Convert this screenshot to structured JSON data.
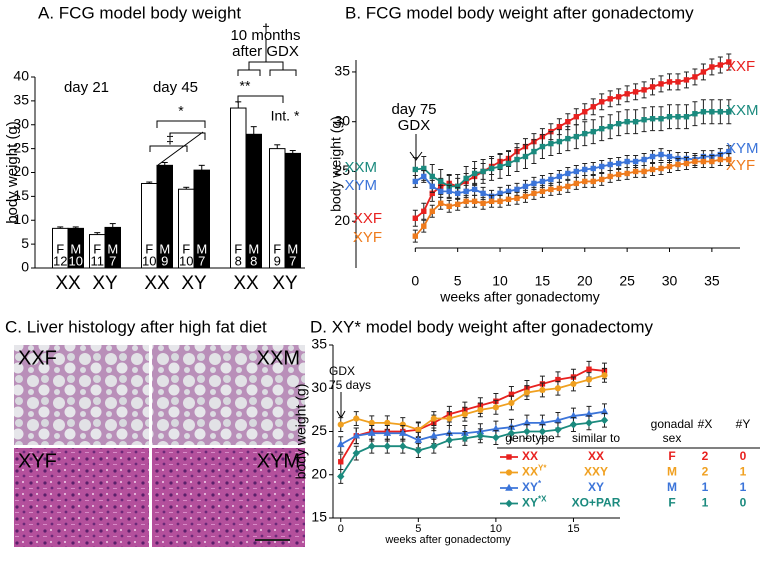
{
  "chart_data": [
    {
      "type": "bar",
      "title": "A. FCG model body weight",
      "y_label": "body weight (g)",
      "groups": [
        [
          "day 21"
        ],
        [
          "day 45"
        ],
        [
          "10 months",
          "after GDX"
        ]
      ],
      "categories": [
        "XX",
        "XY",
        "XX",
        "XY",
        "XX",
        "XY"
      ],
      "series": [
        {
          "name": "F",
          "color": "#ffffff",
          "values": [
            8.3,
            7.0,
            17.7,
            16.5,
            33.5,
            25.0
          ],
          "errors": [
            0.3,
            0.4,
            0.3,
            0.4,
            1.3,
            0.8
          ],
          "n": [
            12,
            11,
            10,
            10,
            8,
            9
          ]
        },
        {
          "name": "M",
          "color": "#000000",
          "values": [
            8.3,
            8.5,
            21.5,
            20.5,
            28.0,
            24.0
          ],
          "errors": [
            0.3,
            0.8,
            0.6,
            1.0,
            1.6,
            0.6
          ],
          "n": [
            10,
            7,
            9,
            7,
            8,
            7
          ]
        }
      ],
      "annotations": [
        "*",
        "‡",
        "**",
        "†",
        "Int. *"
      ],
      "ylim": [
        0,
        40
      ],
      "yticks": [
        0,
        5,
        10,
        15,
        20,
        25,
        30,
        35,
        40
      ]
    },
    {
      "type": "line",
      "title": "B. FCG model body weight after gonadectomy",
      "x_label": "weeks after gonadectomy",
      "y_label": "body weight (g)",
      "annotations": [
        "day 75",
        "GDX"
      ],
      "x": [
        0,
        1,
        2,
        3,
        4,
        5,
        6,
        7,
        8,
        9,
        10,
        11,
        12,
        13,
        14,
        15,
        16,
        17,
        18,
        19,
        20,
        21,
        22,
        23,
        24,
        25,
        26,
        27,
        28,
        29,
        30,
        31,
        32,
        33,
        34,
        35,
        36,
        37
      ],
      "series": [
        {
          "name": "XXF",
          "color": "#e8211f",
          "marker": "square",
          "error": 0.8,
          "values": [
            20.3,
            21.0,
            22.8,
            23.5,
            23.8,
            23.5,
            24.0,
            24.5,
            25.0,
            25.5,
            26.0,
            26.3,
            27.0,
            27.5,
            28.0,
            28.5,
            29.0,
            29.5,
            30.0,
            30.5,
            31.0,
            31.5,
            32.0,
            32.3,
            32.5,
            32.8,
            33.0,
            33.2,
            33.5,
            33.8,
            34.0,
            34.0,
            34.2,
            34.5,
            35.0,
            35.5,
            35.7,
            36.0
          ]
        },
        {
          "name": "XXM",
          "color": "#1b8a7e",
          "marker": "square",
          "error": 1.2,
          "values": [
            25.2,
            25.3,
            24.5,
            24.0,
            23.5,
            23.5,
            24.3,
            24.8,
            25.0,
            25.3,
            25.5,
            25.8,
            26.2,
            26.5,
            27.0,
            27.5,
            27.8,
            28.0,
            28.3,
            28.5,
            28.8,
            29.0,
            29.3,
            29.5,
            29.8,
            30.0,
            30.0,
            30.2,
            30.3,
            30.3,
            30.5,
            30.5,
            30.5,
            30.8,
            31.0,
            31.0,
            31.0,
            31.0
          ]
        },
        {
          "name": "XYM",
          "color": "#3b74d9",
          "marker": "square",
          "error": 0.6,
          "values": [
            24.0,
            24.5,
            23.5,
            23.0,
            23.0,
            22.8,
            23.0,
            23.2,
            22.8,
            22.5,
            22.8,
            23.0,
            23.2,
            23.5,
            23.8,
            24.0,
            24.2,
            24.5,
            24.8,
            25.0,
            25.2,
            25.3,
            25.5,
            25.7,
            25.8,
            26.0,
            26.0,
            26.2,
            26.5,
            26.7,
            26.5,
            26.3,
            26.3,
            26.2,
            26.5,
            26.5,
            26.7,
            27.0
          ]
        },
        {
          "name": "XYF",
          "color": "#ee7a1c",
          "marker": "square",
          "error": 0.6,
          "values": [
            18.5,
            19.5,
            21.0,
            21.8,
            21.5,
            21.7,
            22.0,
            22.0,
            21.8,
            22.0,
            22.0,
            22.2,
            22.3,
            22.5,
            22.8,
            23.0,
            23.2,
            23.3,
            23.5,
            23.8,
            24.0,
            24.0,
            24.2,
            24.5,
            24.7,
            24.8,
            25.0,
            25.0,
            25.2,
            25.3,
            25.5,
            25.7,
            25.8,
            26.0,
            26.0,
            26.0,
            26.2,
            26.2
          ]
        }
      ],
      "xlim": [
        -7,
        39.5
      ],
      "xticks": [
        0,
        5,
        10,
        15,
        20,
        25,
        30,
        35
      ],
      "ylim": [
        15.3,
        36.2
      ],
      "yticks": [
        20,
        25,
        30,
        35
      ]
    },
    {
      "type": "line",
      "title": "D. XY* model body weight after gonadectomy",
      "x_label": "weeks after gonadectomy",
      "y_label": "body weight (g)",
      "annotations": [
        "GDX",
        "75 days"
      ],
      "table_header": {
        "genotype": "genotype",
        "similar_to": "similar to",
        "gonadal_sex": [
          "gonadal",
          "sex"
        ],
        "n_x": "#X",
        "n_y": "#Y"
      },
      "x": [
        0,
        1,
        2,
        3,
        4,
        5,
        6,
        7,
        8,
        9,
        10,
        11,
        12,
        13,
        14,
        15,
        16,
        17
      ],
      "series": [
        {
          "name": "XX",
          "sup": "",
          "similar_to": "XX",
          "gonadal_sex": "F",
          "n_x": 2,
          "n_y": 0,
          "color": "#e8211f",
          "marker": "square",
          "error": 0.9,
          "values": [
            21.5,
            24.5,
            25.0,
            25.0,
            25.0,
            25.2,
            26.0,
            27.0,
            27.5,
            28.0,
            28.5,
            29.3,
            30.0,
            30.5,
            31.0,
            31.3,
            32.2,
            32.0
          ]
        },
        {
          "name": "XX",
          "sup": "Y*",
          "similar_to": "XXY",
          "gonadal_sex": "M",
          "n_x": 2,
          "n_y": 1,
          "color": "#f0a020",
          "marker": "circle",
          "error": 0.8,
          "values": [
            25.8,
            26.5,
            26.0,
            26.0,
            25.8,
            25.2,
            26.5,
            26.5,
            27.0,
            27.5,
            27.8,
            28.3,
            29.5,
            29.8,
            30.0,
            30.5,
            31.0,
            31.5
          ]
        },
        {
          "name": "XY",
          "sup": "*",
          "similar_to": "XY",
          "gonadal_sex": "M",
          "n_x": 1,
          "n_y": 1,
          "color": "#3b74d9",
          "marker": "triangle",
          "error": 0.9,
          "values": [
            23.5,
            24.5,
            24.8,
            24.8,
            24.8,
            24.0,
            24.5,
            24.8,
            24.8,
            25.0,
            25.3,
            25.5,
            26.0,
            26.0,
            26.3,
            26.8,
            27.0,
            27.3
          ]
        },
        {
          "name": "XY",
          "sup": "*X",
          "similar_to": "XO+PAR",
          "gonadal_sex": "F",
          "n_x": 1,
          "n_y": 0,
          "color": "#1b8a7e",
          "marker": "diamond",
          "error": 0.8,
          "values": [
            19.8,
            22.5,
            23.3,
            23.3,
            23.3,
            22.8,
            23.3,
            24.0,
            24.2,
            24.5,
            24.3,
            24.8,
            25.0,
            25.0,
            25.2,
            25.8,
            26.0,
            26.3
          ]
        }
      ],
      "xlim": [
        -0.5,
        18
      ],
      "xticks": [
        0,
        5,
        10,
        15
      ],
      "ylim": [
        15,
        35
      ],
      "yticks": [
        15,
        20,
        25,
        30,
        35
      ]
    }
  ],
  "histology": {
    "title": "C. Liver histology after high fat diet",
    "panels": [
      "XXF",
      "XXM",
      "XYF",
      "XYM"
    ]
  }
}
